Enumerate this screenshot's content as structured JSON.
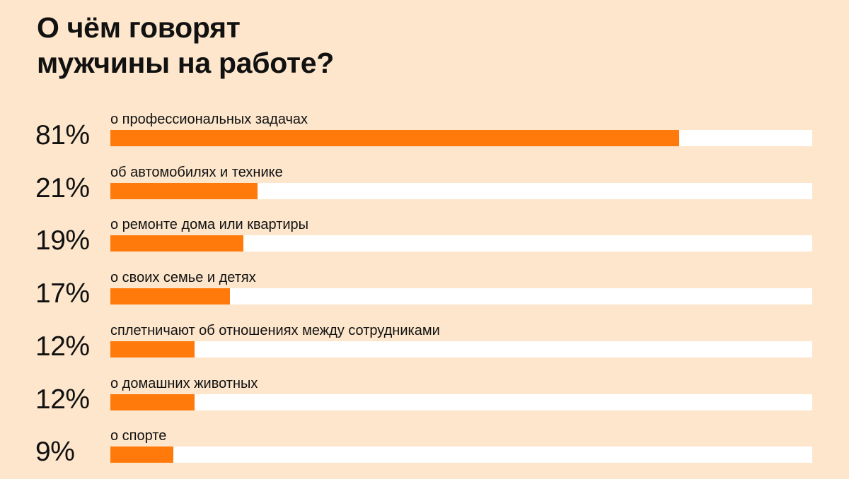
{
  "title_line1": "О чём говорят",
  "title_line2": "мужчины на работе?",
  "colors": {
    "background": "#FDE6CB",
    "bar": "#FF7A0A",
    "track": "#FFFFFF"
  },
  "chart_data": {
    "type": "bar",
    "orientation": "horizontal",
    "title": "О чём говорят мужчины на работе?",
    "xlim": [
      0,
      100
    ],
    "unit": "%",
    "categories": [
      "о профессиональных задачах",
      "об автомобилях и технике",
      "о ремонте дома или квартиры",
      "о своих семье и детях",
      "сплетничают об отношениях между сотрудниками",
      "о домашних животных",
      "о спорте"
    ],
    "values": [
      81,
      21,
      19,
      17,
      12,
      12,
      9
    ],
    "value_labels": [
      "81%",
      "21%",
      "19%",
      "17%",
      "12%",
      "12%",
      "9%"
    ]
  }
}
